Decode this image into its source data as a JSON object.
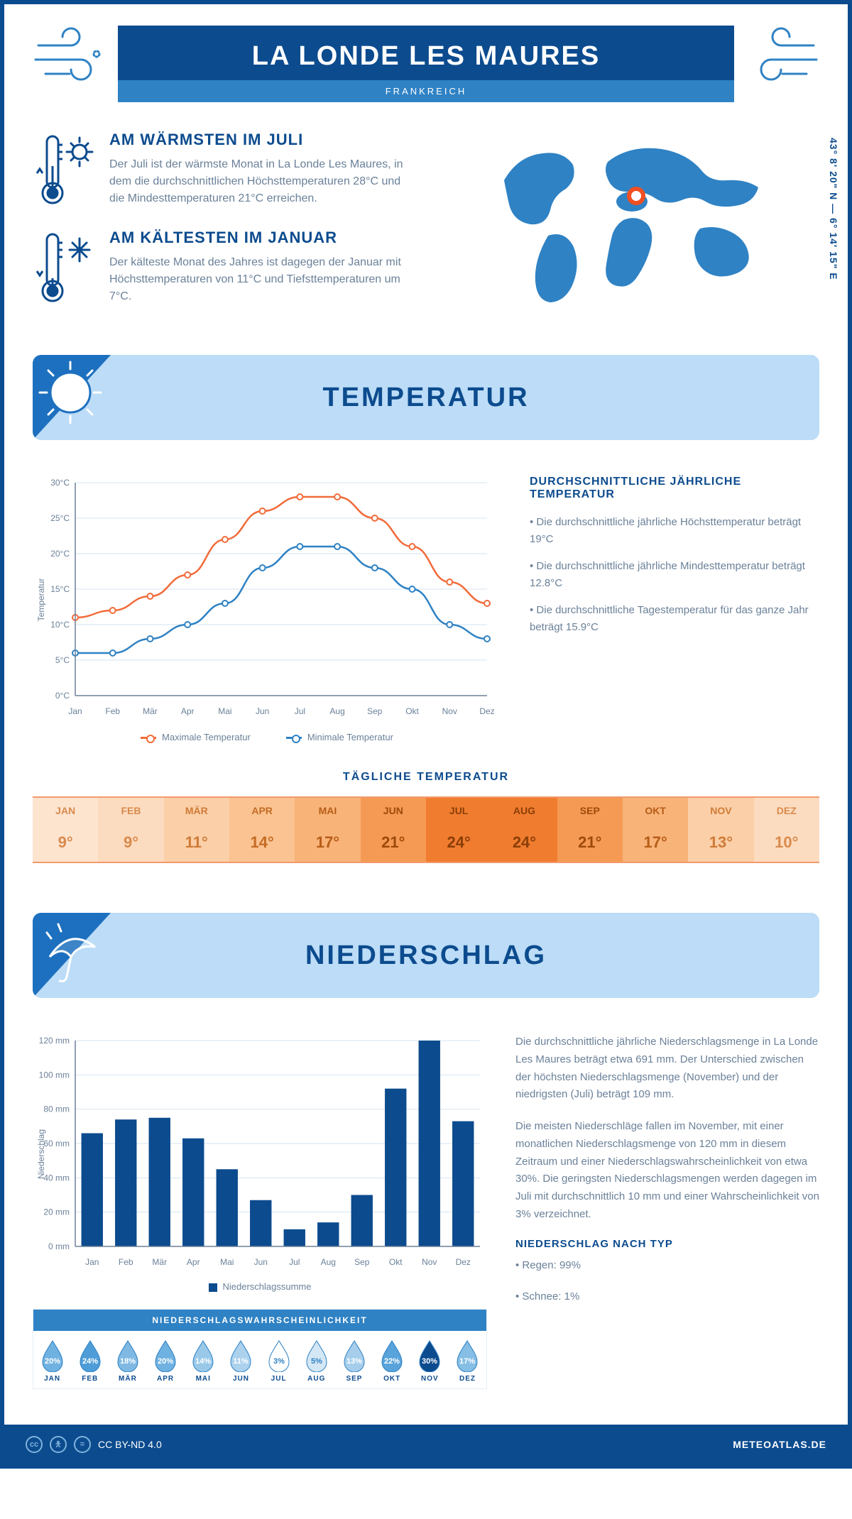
{
  "header": {
    "title": "LA LONDE LES MAURES",
    "country": "FRANKREICH",
    "title_bg": "#0c4b8e",
    "sub_bg": "#2f82c4"
  },
  "summary": {
    "warm": {
      "heading": "AM WÄRMSTEN IM JULI",
      "text": "Der Juli ist der wärmste Monat in La Londe Les Maures, in dem die durchschnittlichen Höchsttemperaturen 28°C und die Mindesttemperaturen 21°C erreichen."
    },
    "cold": {
      "heading": "AM KÄLTESTEN IM JANUAR",
      "text": "Der kälteste Monat des Jahres ist dagegen der Januar mit Höchsttemperaturen von 11°C und Tiefsttemperaturen um 7°C."
    },
    "coords": "43° 8' 20\" N — 6° 14' 15\" E"
  },
  "sections": {
    "temperature_title": "TEMPERATUR",
    "precip_title": "NIEDERSCHLAG"
  },
  "temperature": {
    "type": "line",
    "months": [
      "Jan",
      "Feb",
      "Mär",
      "Apr",
      "Mai",
      "Jun",
      "Jul",
      "Aug",
      "Sep",
      "Okt",
      "Nov",
      "Dez"
    ],
    "max_values": [
      11,
      12,
      14,
      17,
      22,
      26,
      28,
      28,
      25,
      21,
      16,
      13
    ],
    "min_values": [
      6,
      6,
      8,
      10,
      13,
      18,
      21,
      21,
      18,
      15,
      10,
      8
    ],
    "max_color": "#f26b3a",
    "min_color": "#2f82c4",
    "ylim": [
      0,
      30
    ],
    "ytick_step": 5,
    "ylabel": "Temperatur",
    "grid_color": "#d6e4f0",
    "legend_max": "Maximale Temperatur",
    "legend_min": "Minimale Temperatur",
    "side_heading": "DURCHSCHNITTLICHE JÄHRLICHE TEMPERATUR",
    "side_points": [
      "• Die durchschnittliche jährliche Höchsttemperatur beträgt 19°C",
      "• Die durchschnittliche jährliche Mindesttemperatur beträgt 12.8°C",
      "• Die durchschnittliche Tagestemperatur für das ganze Jahr beträgt 15.9°C"
    ]
  },
  "daily_temp": {
    "title": "TÄGLICHE TEMPERATUR",
    "months": [
      "JAN",
      "FEB",
      "MÄR",
      "APR",
      "MAI",
      "JUN",
      "JUL",
      "AUG",
      "SEP",
      "OKT",
      "NOV",
      "DEZ"
    ],
    "values": [
      "9°",
      "9°",
      "11°",
      "14°",
      "17°",
      "21°",
      "24°",
      "24°",
      "21°",
      "17°",
      "13°",
      "10°"
    ],
    "bg_colors": [
      "#fde4cf",
      "#fcdcc0",
      "#fbcfa8",
      "#fac391",
      "#f8b379",
      "#f59a54",
      "#f07c2f",
      "#f07c2f",
      "#f59a54",
      "#f8b379",
      "#fbcfa8",
      "#fcdcc0"
    ],
    "text_colors": [
      "#d98a4c",
      "#d98a4c",
      "#cf7b37",
      "#c56b23",
      "#b75d16",
      "#9e4a0b",
      "#8a3e07",
      "#8a3e07",
      "#9e4a0b",
      "#b75d16",
      "#cf7b37",
      "#d98a4c"
    ]
  },
  "precip": {
    "type": "bar",
    "months": [
      "Jan",
      "Feb",
      "Mär",
      "Apr",
      "Mai",
      "Jun",
      "Jul",
      "Aug",
      "Sep",
      "Okt",
      "Nov",
      "Dez"
    ],
    "values": [
      66,
      74,
      75,
      63,
      45,
      27,
      10,
      14,
      30,
      92,
      120,
      73
    ],
    "bar_color": "#0c4b8e",
    "ylim": [
      0,
      120
    ],
    "ytick_step": 20,
    "ylabel": "Niederschlag",
    "legend": "Niederschlagssumme",
    "text1": "Die durchschnittliche jährliche Niederschlagsmenge in La Londe Les Maures beträgt etwa 691 mm. Der Unterschied zwischen der höchsten Niederschlagsmenge (November) und der niedrigsten (Juli) beträgt 109 mm.",
    "text2": "Die meisten Niederschläge fallen im November, mit einer monatlichen Niederschlagsmenge von 120 mm in diesem Zeitraum und einer Niederschlagswahrscheinlichkeit von etwa 30%. Die geringsten Niederschlagsmengen werden dagegen im Juli mit durchschnittlich 10 mm und einer Wahrscheinlichkeit von 3% verzeichnet.",
    "by_type_heading": "NIEDERSCHLAG NACH TYP",
    "by_type": [
      "• Regen: 99%",
      "• Schnee: 1%"
    ]
  },
  "probability": {
    "title": "NIEDERSCHLAGSWAHRSCHEINLICHKEIT",
    "months": [
      "JAN",
      "FEB",
      "MÄR",
      "APR",
      "MAI",
      "JUN",
      "JUL",
      "AUG",
      "SEP",
      "OKT",
      "NOV",
      "DEZ"
    ],
    "values": [
      "20%",
      "24%",
      "18%",
      "20%",
      "14%",
      "11%",
      "3%",
      "5%",
      "13%",
      "22%",
      "30%",
      "17%"
    ],
    "drop_colors": [
      "#6fb1e0",
      "#4f9dd8",
      "#7fb9e3",
      "#6fb1e0",
      "#99c8e9",
      "#abd1ed",
      "#ffffff",
      "#d4e7f4",
      "#a6ceec",
      "#59a3db",
      "#0c4b8e",
      "#86bee5"
    ],
    "text_colors": [
      "#fff",
      "#fff",
      "#fff",
      "#fff",
      "#fff",
      "#fff",
      "#2f82c4",
      "#2f82c4",
      "#fff",
      "#fff",
      "#fff",
      "#fff"
    ]
  },
  "footer": {
    "license": "CC BY-ND 4.0",
    "site": "METEOATLAS.DE"
  },
  "colors": {
    "brand_dark": "#0c4b8e",
    "brand_mid": "#2f82c4",
    "banner_bg": "#bcdcf7"
  }
}
